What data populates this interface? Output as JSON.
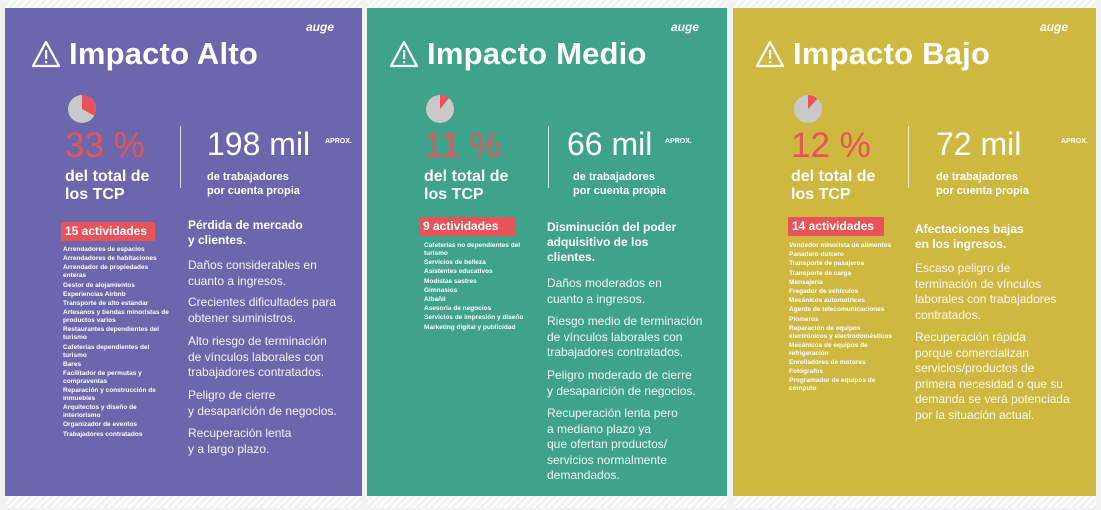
{
  "colors": {
    "alto": "#6c66ac",
    "medio": "#3fa38b",
    "bajo": "#cfb840",
    "accent": "#e8535a"
  },
  "panels": {
    "alto": {
      "logo": "auge",
      "title": "Impacto Alto",
      "pie_fraction": 0.33,
      "pct": "33 %",
      "pct_sub": [
        "del total de",
        "los TCP"
      ],
      "big": "198 mil",
      "aprox": "APROX.",
      "big_sub": [
        "de trabajadores",
        "por cuenta propia"
      ],
      "activities_label": "15 actividades",
      "activities": [
        "Arrendadores de espacios",
        "Arrendadores de habitaciones",
        "Arrendador de propiedades enteras",
        "Gestor de alojamientos",
        "Experiencias Airbnb",
        "Transporte de alto estándar",
        "Artesanos y tiendas minoristas de productos varios",
        "Restaurantes dependientes del turismo",
        "Cafeterías dependientes del turismo",
        "Bares",
        "Facilitador de permutas y compraventas",
        "Reparación y construcción de inmuebles",
        "Arquitectos y diseño de interiorismo",
        "Organizador de eventos",
        "Trabajadores contratados"
      ],
      "heading": [
        "Pérdida de mercado",
        "y clientes."
      ],
      "paras": [
        [
          "Daños considerables en",
          "cuanto a ingresos."
        ],
        [
          "Crecientes dificultades para",
          "obtener suministros."
        ],
        [
          "Alto riesgo de terminación",
          "de vínculos laborales con",
          "trabajadores contratados."
        ],
        [
          "Peligro de cierre",
          "y desaparición de negocios."
        ],
        [
          "Recuperación lenta",
          "y a largo plazo."
        ]
      ]
    },
    "medio": {
      "logo": "auge",
      "title": "Impacto Medio",
      "pie_fraction": 0.11,
      "pct": "11 %",
      "pct_sub": [
        "del total de",
        "los TCP"
      ],
      "big": "66 mil",
      "aprox": "APROX.",
      "big_sub": [
        "de trabajadores",
        "por cuenta propia"
      ],
      "activities_label": "9 actividades",
      "activities": [
        "Cafeterías no dependientes del turismo",
        "Servicios de belleza",
        "Asistentes educativos",
        "Modistas sastres",
        "Gimnasios",
        "Albañil",
        "Asesoría de negocios",
        "Servicios de impresión y diseño",
        "Marketing digital y publicidad"
      ],
      "heading": [
        "Disminución del poder",
        "adquisitivo de los",
        "clientes."
      ],
      "paras": [
        [
          "Daños moderados en",
          "cuanto a ingresos."
        ],
        [
          "Riesgo medio de terminación",
          "de vínculos laborales con",
          "trabajadores contratados."
        ],
        [
          "Peligro moderado de cierre",
          "y desaparición de negocios."
        ],
        [
          "Recuperación lenta pero",
          "a mediano plazo ya",
          "que ofertan productos/",
          "servicios normalmente",
          "demandados."
        ]
      ]
    },
    "bajo": {
      "logo": "auge",
      "title": "Impacto Bajo",
      "pie_fraction": 0.12,
      "pct": "12 %",
      "pct_sub": [
        "del total de",
        "los TCP"
      ],
      "big": "72 mil",
      "aprox": "APROX.",
      "big_sub": [
        "de trabajadores",
        "por cuenta propia"
      ],
      "activities_label": "14 actividades",
      "activities": [
        "Vendedor minorista de alimentos",
        "Panadero dulcero",
        "Transporte de pasajeros",
        "Transporte de carga",
        "Mensajería",
        "Fregador de vehículos",
        "Mecánicos automotrices",
        "Agente de telecomunicaciones",
        "Plomeros",
        "Reparación de equipos electrónicos y electrodomésticos",
        "Mecánicos de equipos de refrigeración",
        "Enrolladores de motores",
        "Fotógrafos",
        "Programador de equipos de cómputo"
      ],
      "heading": [
        "Afectaciones bajas",
        "en los ingresos."
      ],
      "paras": [
        [
          "Escaso peligro de",
          "terminación de vínculos",
          "laborales con trabajadores",
          "contratados."
        ],
        [
          "Recuperación rápida",
          "porque comercializan",
          "servicios/productos de",
          "primera necesidad o que su",
          "demanda se verá potenciada",
          "por la situación actual."
        ]
      ]
    }
  }
}
